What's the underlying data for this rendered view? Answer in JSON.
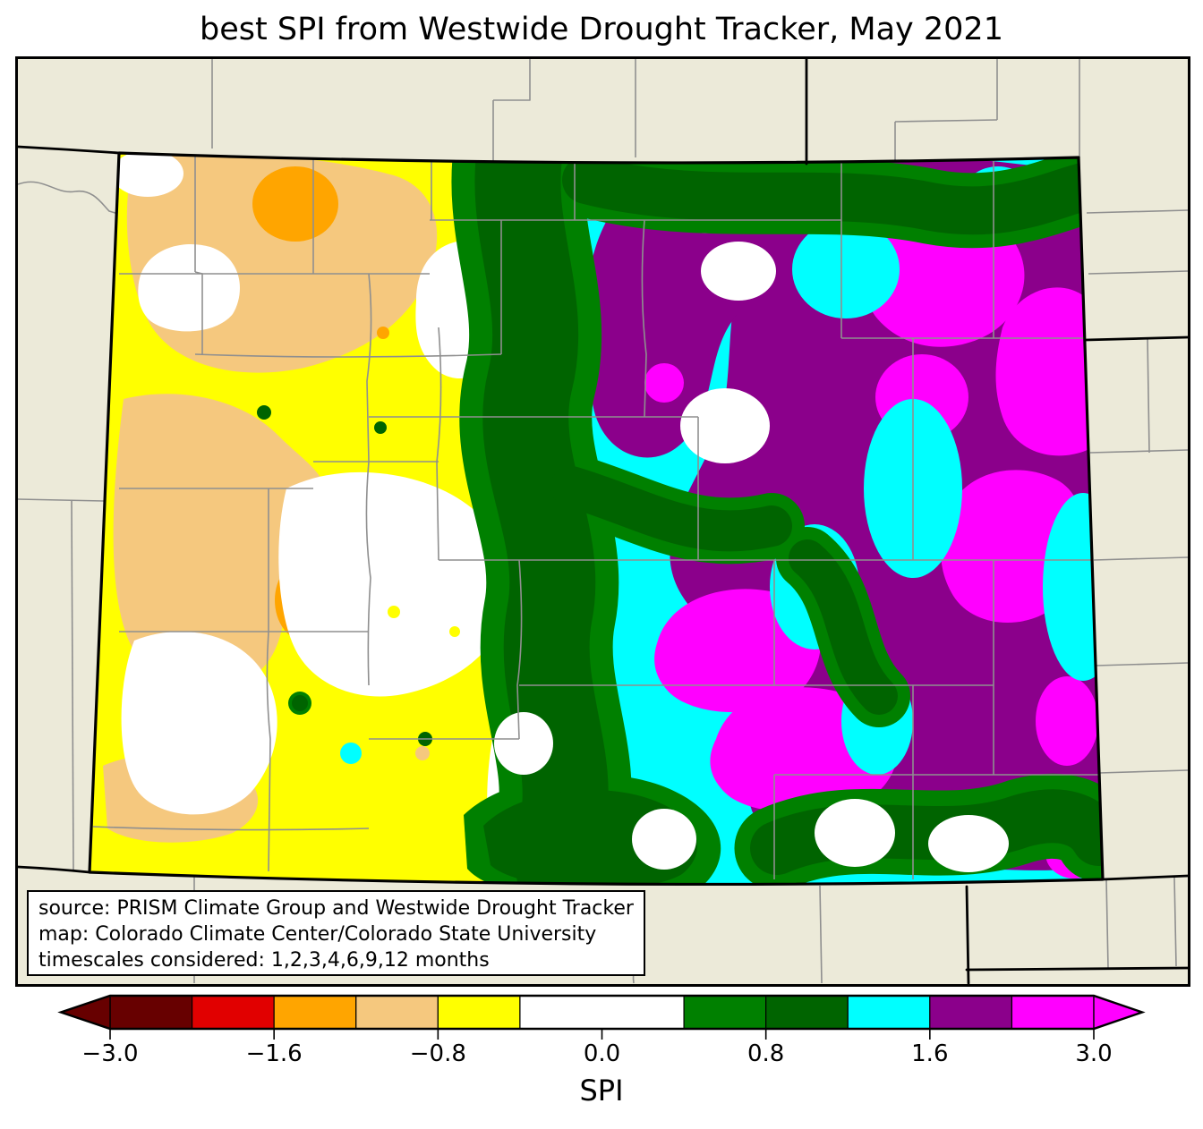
{
  "figure": {
    "title": "best SPI from Westwide Drought Tracker, May 2021"
  },
  "annotation_box": {
    "line1": "source: PRISM Climate Group and Westwide Drought Tracker",
    "line2": "map: Colorado Climate Center/Colorado State University",
    "line3": "timescales considered: 1,2,3,4,6,9,12 months"
  },
  "colorbar": {
    "label": "SPI",
    "tick_labels": [
      "−3.0",
      "−1.6",
      "−0.8",
      "0.0",
      "0.8",
      "1.6",
      "3.0"
    ],
    "tick_values": [
      -3.0,
      -1.6,
      -0.8,
      0.0,
      0.8,
      1.6,
      3.0
    ],
    "boundary_values": [
      -3.0,
      -2.3,
      -1.6,
      -1.2,
      -0.8,
      -0.5,
      0.5,
      0.8,
      1.2,
      1.6,
      2.3,
      3.0
    ],
    "segment_colors": [
      "#670000",
      "#E10000",
      "#FFA500",
      "#F5C87E",
      "#FFFF00",
      "#FFFFFF",
      "#008000",
      "#006400",
      "#00FFFF",
      "#8B008B",
      "#FF00FF"
    ],
    "extend_left_color": "#670000",
    "extend_right_color": "#FF00FF"
  },
  "palette": {
    "beige": "#ECEAD9",
    "maroon": "#670000",
    "red": "#E10000",
    "orange": "#FFA500",
    "wheat": "#F5C87E",
    "yellow": "#FFFF00",
    "white": "#FFFFFF",
    "green": "#008000",
    "dark_green": "#006400",
    "cyan": "#00FFFF",
    "purple": "#8B008B",
    "magenta": "#FF00FF",
    "county": "#8f8f8f",
    "state_line": "#000000"
  }
}
